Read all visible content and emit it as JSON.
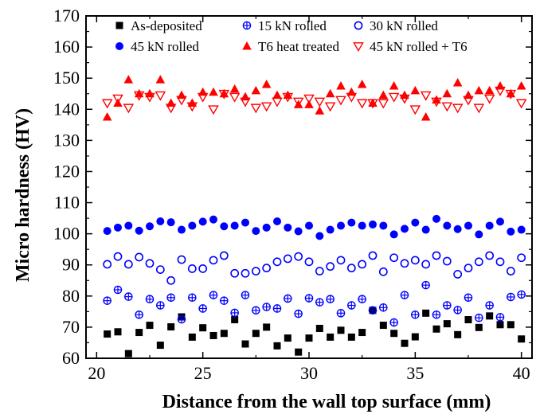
{
  "chart_data": {
    "type": "scatter",
    "xlabel": "Distance from the wall top surface (mm)",
    "ylabel": "Micro hardness (HV)",
    "xlim": [
      19.5,
      40.5
    ],
    "ylim": [
      60,
      170
    ],
    "xticks": [
      20,
      25,
      30,
      35,
      40
    ],
    "yticks": [
      60,
      70,
      80,
      90,
      100,
      110,
      120,
      130,
      140,
      150,
      160,
      170
    ],
    "legend_position": "top",
    "series": [
      {
        "name": "As-deposited",
        "marker": "square-filled",
        "color": "#000000",
        "x": [
          20.5,
          21,
          21.5,
          22,
          22.5,
          23,
          23.5,
          24,
          24.5,
          25,
          25.5,
          26,
          26.5,
          27,
          27.5,
          28,
          28.5,
          29,
          29.5,
          30,
          30.5,
          31,
          31.5,
          32,
          32.5,
          33,
          33.5,
          34,
          34.5,
          35,
          35.5,
          36,
          36.5,
          37,
          37.5,
          38,
          38.5,
          39,
          39.5,
          40
        ],
        "y": [
          67.8,
          68.5,
          61.5,
          68.3,
          70.6,
          64.2,
          70.1,
          73.3,
          66.8,
          69.8,
          67.3,
          68.0,
          72.4,
          64.6,
          68.0,
          70.0,
          64.0,
          66.5,
          62.0,
          66.5,
          69.6,
          66.8,
          69.0,
          66.8,
          68.3,
          75.4,
          70.6,
          68.0,
          64.8,
          66.9,
          74.5,
          69.4,
          71.1,
          67.6,
          72.4,
          69.9,
          73.6,
          70.8,
          70.8,
          66.2
        ]
      },
      {
        "name": "15 kN rolled",
        "marker": "circle-crossed",
        "color": "#0000ff",
        "x": [
          20.5,
          21,
          21.5,
          22,
          22.5,
          23,
          23.5,
          24,
          24.5,
          25,
          25.5,
          26,
          26.5,
          27,
          27.5,
          28,
          28.5,
          29,
          29.5,
          30,
          30.5,
          31,
          31.5,
          32,
          32.5,
          33,
          33.5,
          34,
          34.5,
          35,
          35.5,
          36,
          36.5,
          37,
          37.5,
          38,
          38.5,
          39,
          39.5,
          40
        ],
        "y": [
          78.5,
          82.0,
          79.8,
          74.0,
          79.0,
          77.0,
          79.5,
          72.5,
          79.5,
          76.0,
          80.3,
          78.5,
          74.6,
          80.3,
          75.4,
          76.5,
          76.0,
          79.2,
          74.3,
          79.3,
          78.0,
          79.0,
          74.5,
          77.0,
          79.0,
          75.4,
          76.3,
          71.5,
          80.3,
          74.0,
          83.5,
          74.0,
          77.0,
          75.5,
          79.5,
          73.0,
          77.0,
          73.2,
          79.7,
          80.5
        ]
      },
      {
        "name": "30 kN rolled",
        "marker": "circle-open",
        "color": "#0000ff",
        "x": [
          20.5,
          21,
          21.5,
          22,
          22.5,
          23,
          23.5,
          24,
          24.5,
          25,
          25.5,
          26,
          26.5,
          27,
          27.5,
          28,
          28.5,
          29,
          29.5,
          30,
          30.5,
          31,
          31.5,
          32,
          32.5,
          33,
          33.5,
          34,
          34.5,
          35,
          35.5,
          36,
          36.5,
          37,
          37.5,
          38,
          38.5,
          39,
          39.5,
          40
        ],
        "y": [
          90.2,
          92.7,
          90.2,
          92.5,
          90.5,
          88.5,
          85.0,
          91.7,
          88.8,
          88.8,
          91.5,
          93.0,
          87.3,
          87.3,
          88.0,
          89.0,
          91.0,
          92.0,
          92.7,
          91.0,
          88.0,
          89.5,
          91.5,
          89.0,
          90.2,
          93.0,
          87.8,
          92.3,
          90.5,
          91.5,
          90.2,
          93.0,
          91.2,
          87.0,
          89.0,
          91.0,
          93.0,
          91.0,
          88.0,
          92.3
        ]
      },
      {
        "name": "45 kN rolled",
        "marker": "circle-filled",
        "color": "#0000ff",
        "x": [
          20.5,
          21,
          21.5,
          22,
          22.5,
          23,
          23.5,
          24,
          24.5,
          25,
          25.5,
          26,
          26.5,
          27,
          27.5,
          28,
          28.5,
          29,
          29.5,
          30,
          30.5,
          31,
          31.5,
          32,
          32.5,
          33,
          33.5,
          34,
          34.5,
          35,
          35.5,
          36,
          36.5,
          37,
          37.5,
          38,
          38.5,
          39,
          39.5,
          40
        ],
        "y": [
          100.9,
          102.0,
          102.6,
          101.0,
          102.4,
          104.0,
          103.7,
          101.3,
          102.6,
          103.9,
          104.6,
          102.4,
          102.6,
          103.6,
          100.9,
          102.0,
          104.0,
          102.0,
          100.8,
          102.6,
          99.3,
          101.3,
          102.6,
          103.6,
          102.6,
          103.0,
          102.6,
          99.8,
          101.6,
          103.6,
          101.3,
          104.8,
          102.6,
          101.5,
          102.6,
          99.8,
          102.6,
          103.9,
          100.7,
          101.3
        ]
      },
      {
        "name": "T6 heat treated",
        "marker": "triangle-up-filled",
        "color": "#ff0000",
        "x": [
          20.5,
          21,
          21.5,
          22,
          22.5,
          23,
          23.5,
          24,
          24.5,
          25,
          25.5,
          26,
          26.5,
          27,
          27.5,
          28,
          28.5,
          29,
          29.5,
          30,
          30.5,
          31,
          31.5,
          32,
          32.5,
          33,
          33.5,
          34,
          34.5,
          35,
          35.5,
          36,
          36.5,
          37,
          37.5,
          38,
          38.5,
          39,
          39.5,
          40
        ],
        "y": [
          137.5,
          142.0,
          149.5,
          145.0,
          145.0,
          149.5,
          142.0,
          144.5,
          142.0,
          145.5,
          145.5,
          145.0,
          146.5,
          144.0,
          146.0,
          148.0,
          144.5,
          144.5,
          141.5,
          141.5,
          139.5,
          145.0,
          147.5,
          145.5,
          148.0,
          142.0,
          144.5,
          147.5,
          144.5,
          146.0,
          137.5,
          143.0,
          145.0,
          148.5,
          144.5,
          146.0,
          146.0,
          147.5,
          145.0,
          147.5
        ]
      },
      {
        "name": "45 kN rolled + T6",
        "marker": "triangle-down-open",
        "color": "#ff0000",
        "x": [
          20.5,
          21,
          21.5,
          22,
          22.5,
          23,
          23.5,
          24,
          24.5,
          25,
          25.5,
          26,
          26.5,
          27,
          27.5,
          28,
          28.5,
          29,
          29.5,
          30,
          30.5,
          31,
          31.5,
          32,
          32.5,
          33,
          33.5,
          34,
          34.5,
          35,
          35.5,
          36,
          36.5,
          37,
          37.5,
          38,
          38.5,
          39,
          39.5,
          40
        ],
        "y": [
          142.0,
          143.5,
          140.5,
          144.5,
          144.0,
          144.5,
          140.5,
          143.0,
          141.0,
          144.0,
          140.0,
          145.0,
          144.0,
          142.5,
          140.5,
          141.0,
          142.5,
          144.0,
          142.5,
          143.5,
          142.5,
          141.0,
          143.0,
          144.0,
          142.0,
          142.0,
          142.0,
          144.0,
          143.5,
          140.0,
          144.5,
          142.5,
          141.0,
          140.5,
          143.0,
          140.5,
          143.5,
          146.0,
          145.0,
          142.0
        ]
      }
    ]
  }
}
